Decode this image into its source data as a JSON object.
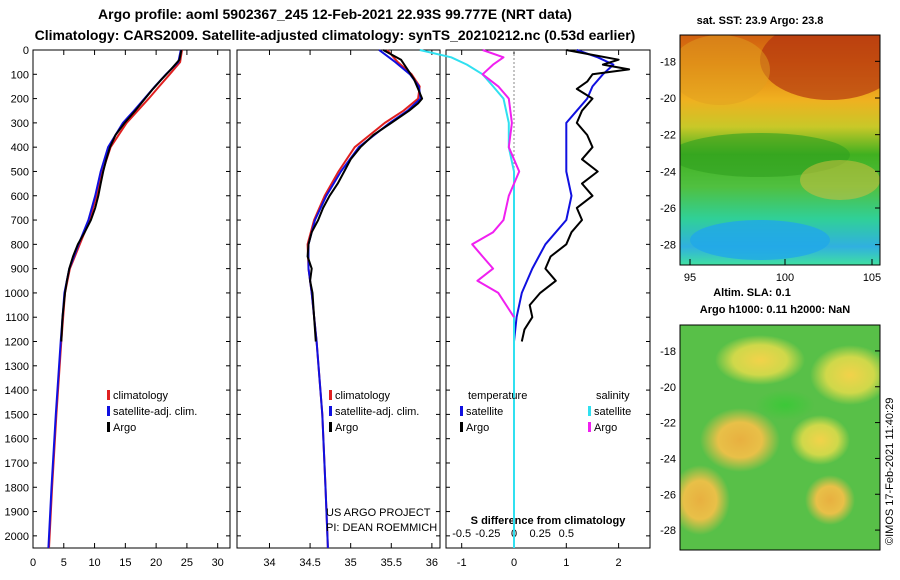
{
  "header": {
    "line1": "Argo profile: aoml 5902367_245 12-Feb-2021 22.93S 99.777E (NRT data)",
    "line2": "Climatology: CARS2009. Satellite-adjusted climatology: synTS_20210212.nc (0.53d earlier)"
  },
  "credits": {
    "project": "US ARGO PROJECT",
    "pi": "PI: DEAN ROEMMICH"
  },
  "watermark": "©IMOS 17-Feb-2021 11:40:29",
  "colors": {
    "climatology": "#e02020",
    "satellite": "#1010e0",
    "argo": "#000000",
    "sat_salinity": "#30e0f0",
    "argo_salinity": "#f020f0"
  },
  "chart_data": [
    {
      "type": "line",
      "id": "temperature",
      "xlim": [
        0,
        32
      ],
      "ylim": [
        2050,
        0
      ],
      "xticks": [
        0,
        5,
        10,
        15,
        20,
        25,
        30
      ],
      "yticks": [
        0,
        100,
        200,
        300,
        400,
        500,
        600,
        700,
        800,
        900,
        1000,
        1100,
        1200,
        1300,
        1400,
        1500,
        1600,
        1700,
        1800,
        1900,
        2000
      ],
      "legend": [
        "climatology",
        "satellite-adj. clim.",
        "Argo"
      ],
      "series": [
        {
          "name": "climatology",
          "color": "#e02020",
          "depth": [
            0,
            50,
            100,
            150,
            200,
            250,
            300,
            400,
            500,
            600,
            700,
            800,
            900,
            1000,
            1200,
            1500,
            1800,
            2050
          ],
          "values": [
            24.2,
            23.9,
            22.2,
            20.5,
            18.8,
            17.0,
            15.2,
            12.6,
            11.3,
            10.3,
            9.2,
            7.6,
            6.0,
            5.2,
            4.6,
            3.8,
            3.1,
            2.6
          ]
        },
        {
          "name": "satellite-adj. clim.",
          "color": "#1010e0",
          "depth": [
            0,
            50,
            100,
            150,
            200,
            250,
            300,
            400,
            500,
            600,
            700,
            800,
            900,
            1000,
            1200,
            1500,
            1800,
            2050
          ],
          "values": [
            24.0,
            23.6,
            21.6,
            19.8,
            18.1,
            16.4,
            14.6,
            12.2,
            11.0,
            10.1,
            9.0,
            7.4,
            5.9,
            5.1,
            4.5,
            3.7,
            3.0,
            2.5
          ]
        },
        {
          "name": "Argo",
          "color": "#000000",
          "depth": [
            0,
            40,
            80,
            120,
            160,
            200,
            250,
            300,
            350,
            400,
            450,
            500,
            550,
            600,
            650,
            700,
            750,
            800,
            850,
            900,
            950,
            1000,
            1100,
            1200
          ],
          "values": [
            24.1,
            23.8,
            22.4,
            20.9,
            19.5,
            18.2,
            16.6,
            14.9,
            13.4,
            12.5,
            11.9,
            11.4,
            11.0,
            10.6,
            10.1,
            9.4,
            8.4,
            7.3,
            6.5,
            5.9,
            5.5,
            5.2,
            4.8,
            4.6
          ]
        }
      ],
      "xlabels": [
        "0",
        "5",
        "10",
        "15",
        "20",
        "25",
        "30"
      ]
    },
    {
      "type": "line",
      "id": "salinity",
      "xlim": [
        33.6,
        36.1
      ],
      "ylim": [
        2050,
        0
      ],
      "xticks": [
        34,
        34.5,
        35,
        35.5,
        36
      ],
      "xlabels": [
        "34",
        "34.5",
        "35",
        "35.5",
        "36"
      ],
      "legend": [
        "climatology",
        "satellite-adj. clim.",
        "Argo"
      ],
      "series": [
        {
          "name": "climatology",
          "color": "#e02020",
          "depth": [
            0,
            50,
            100,
            150,
            200,
            250,
            300,
            400,
            500,
            600,
            700,
            800,
            900,
            1000,
            1200,
            1500,
            1800,
            2050
          ],
          "values": [
            35.45,
            35.58,
            35.75,
            35.85,
            35.83,
            35.65,
            35.42,
            35.05,
            34.85,
            34.68,
            34.55,
            34.47,
            34.48,
            34.52,
            34.58,
            34.65,
            34.69,
            34.72
          ]
        },
        {
          "name": "satellite-adj. clim.",
          "color": "#1010e0",
          "depth": [
            0,
            50,
            100,
            150,
            200,
            250,
            300,
            400,
            500,
            600,
            700,
            800,
            900,
            1000,
            1200,
            1500,
            1800,
            2050
          ],
          "values": [
            35.35,
            35.55,
            35.73,
            35.84,
            35.86,
            35.7,
            35.48,
            35.1,
            34.88,
            34.7,
            34.56,
            34.48,
            34.48,
            34.52,
            34.58,
            34.65,
            34.69,
            34.72
          ]
        },
        {
          "name": "Argo",
          "color": "#000000",
          "depth": [
            0,
            40,
            80,
            120,
            160,
            200,
            220,
            250,
            300,
            350,
            400,
            450,
            500,
            550,
            600,
            650,
            700,
            750,
            800,
            850,
            900,
            950,
            1000,
            1100,
            1200
          ],
          "values": [
            35.4,
            35.62,
            35.7,
            35.78,
            35.83,
            35.88,
            35.83,
            35.72,
            35.5,
            35.28,
            35.12,
            35.0,
            34.92,
            34.84,
            34.74,
            34.66,
            34.6,
            34.52,
            34.48,
            34.47,
            34.52,
            34.5,
            34.53,
            34.55,
            34.57
          ]
        }
      ]
    },
    {
      "type": "line",
      "id": "difference",
      "title": "S difference from climatology",
      "xlim": [
        -1.3,
        2.6
      ],
      "ylim": [
        2050,
        0
      ],
      "xticks": [
        -1,
        0,
        1,
        2
      ],
      "xlabels": [
        "-1",
        "0",
        "1",
        "2"
      ],
      "s_ticks": [
        -0.5,
        -0.25,
        0,
        0.25,
        0.5
      ],
      "s_labels": [
        "-0.5",
        "-0.25",
        "0",
        "0.25",
        "0.5"
      ],
      "legend_temperature": [
        "satellite",
        "Argo"
      ],
      "legend_salinity": [
        "satellite",
        "Argo"
      ],
      "legend_headers": [
        "temperature",
        "salinity"
      ],
      "series": [
        {
          "name": "temperature satellite",
          "color": "#1010e0",
          "depth": [
            0,
            30,
            60,
            100,
            150,
            200,
            250,
            300,
            400,
            500,
            600,
            700,
            800,
            900,
            1000,
            1100,
            1200,
            1500,
            2050
          ],
          "values": [
            1.2,
            1.6,
            1.9,
            1.7,
            1.5,
            1.4,
            1.2,
            1.0,
            1.0,
            1.0,
            1.1,
            1.0,
            0.6,
            0.35,
            0.15,
            0.05,
            0.0,
            0.0,
            0.0
          ]
        },
        {
          "name": "temperature Argo",
          "color": "#000000",
          "depth": [
            0,
            20,
            40,
            60,
            80,
            100,
            130,
            160,
            200,
            250,
            300,
            350,
            400,
            450,
            500,
            550,
            600,
            650,
            700,
            750,
            800,
            850,
            900,
            950,
            1000,
            1050,
            1100,
            1150,
            1200
          ],
          "values": [
            1.0,
            1.5,
            2.0,
            1.7,
            2.2,
            1.5,
            1.4,
            1.2,
            1.5,
            1.3,
            1.2,
            1.4,
            1.5,
            1.3,
            1.6,
            1.3,
            1.5,
            1.2,
            1.3,
            1.1,
            1.0,
            0.7,
            0.6,
            0.8,
            0.5,
            0.3,
            0.35,
            0.2,
            0.15
          ]
        },
        {
          "name": "salinity satellite",
          "color": "#30e0f0",
          "depth": [
            0,
            30,
            60,
            100,
            150,
            200,
            300,
            400,
            500,
            700,
            900,
            1200,
            1500,
            2050
          ],
          "values": [
            -0.9,
            -0.6,
            -0.45,
            -0.3,
            -0.2,
            -0.1,
            -0.05,
            -0.05,
            0.0,
            0.0,
            0.0,
            0.0,
            0.0,
            0.0
          ]
        },
        {
          "name": "salinity Argo",
          "color": "#f020f0",
          "depth": [
            0,
            30,
            60,
            100,
            150,
            200,
            300,
            400,
            500,
            600,
            700,
            750,
            800,
            850,
            900,
            950,
            1000,
            1100
          ],
          "values": [
            -0.3,
            -0.1,
            -0.2,
            -0.3,
            -0.15,
            -0.05,
            -0.02,
            -0.05,
            0.05,
            -0.05,
            -0.1,
            -0.2,
            -0.4,
            -0.3,
            -0.2,
            -0.35,
            -0.15,
            0.0
          ]
        }
      ]
    }
  ],
  "map_sst": {
    "title": "sat. SST: 23.9 Argo: 23.8",
    "xticks": [
      "95",
      "100",
      "105"
    ],
    "yticks": [
      "-18",
      "-20",
      "-22",
      "-24",
      "-26",
      "-28"
    ]
  },
  "map_sla": {
    "title1": "Altim. SLA: 0.1",
    "title2": "Argo h1000: 0.11 h2000: NaN",
    "yticks": [
      "-18",
      "-20",
      "-22",
      "-24",
      "-26",
      "-28"
    ]
  }
}
